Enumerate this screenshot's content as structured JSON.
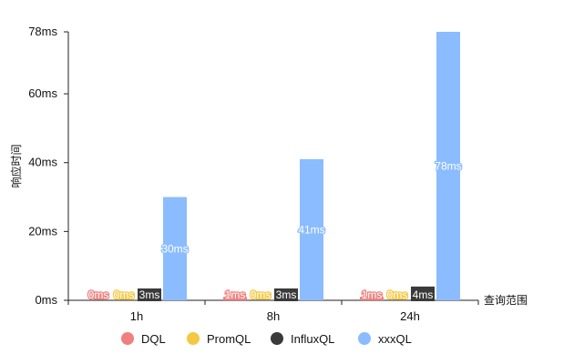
{
  "chart_data": {
    "type": "bar",
    "categories": [
      "1h",
      "8h",
      "24h"
    ],
    "series": [
      {
        "name": "DQL",
        "values": [
          0,
          1,
          1
        ],
        "labels": [
          "0ms",
          "1ms",
          "1ms"
        ],
        "color": "#f08080"
      },
      {
        "name": "PromQL",
        "values": [
          0,
          0,
          0
        ],
        "labels": [
          "0ms",
          "0ms",
          "0ms"
        ],
        "color": "#f5c842"
      },
      {
        "name": "InfluxQL",
        "values": [
          3,
          3,
          4
        ],
        "labels": [
          "3ms",
          "3ms",
          "4ms"
        ],
        "color": "#3a3a3a"
      },
      {
        "name": "xxxQL",
        "values": [
          30,
          41,
          78
        ],
        "labels": [
          "30ms",
          "41ms",
          "78ms"
        ],
        "color": "#8bbcff"
      }
    ],
    "xlabel": "查询范围",
    "ylabel": "响应时间",
    "ylim": [
      0,
      78
    ],
    "yticks": [
      0,
      20,
      40,
      60,
      78
    ],
    "ytick_labels": [
      "0ms",
      "20ms",
      "40ms",
      "60ms",
      "78ms"
    ],
    "legend": "bottom",
    "grid": false
  }
}
